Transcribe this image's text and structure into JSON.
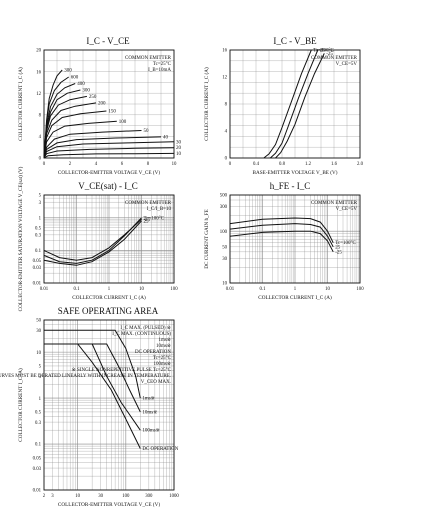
{
  "chart_data": [
    {
      "type": "line",
      "title": "I_C - V_CE",
      "xlabel": "COLLECTOR-EMITTER VOLTAGE  V_CE  (V)",
      "ylabel": "COLLECTOR CURRENT  I_C  (A)",
      "xlim": [
        0,
        10
      ],
      "ylim": [
        0,
        20
      ],
      "xticks": [
        "0",
        "2",
        "4",
        "6",
        "8",
        "10"
      ],
      "yticks": [
        "0",
        "4",
        "8",
        "12",
        "16",
        "20"
      ],
      "grid": true,
      "annotations": [
        "COMMON EMITTER",
        "Tc=25°C",
        "I_B=10mA"
      ],
      "series": [
        {
          "name": "300",
          "x": [
            0,
            0.2,
            0.4,
            0.7,
            1.0,
            1.4
          ],
          "y": [
            0,
            7,
            11,
            13.5,
            15.2,
            16.3
          ]
        },
        {
          "name": "600",
          "x": [
            0,
            0.2,
            0.4,
            0.8,
            1.3,
            1.9
          ],
          "y": [
            0,
            6.5,
            10,
            12.5,
            14,
            15
          ]
        },
        {
          "name": "400",
          "x": [
            0,
            0.2,
            0.5,
            1,
            1.6,
            2.4
          ],
          "y": [
            0,
            6,
            9.5,
            11.8,
            13,
            13.8
          ]
        },
        {
          "name": "300",
          "x": [
            0,
            0.2,
            0.5,
            1,
            1.8,
            2.8
          ],
          "y": [
            0,
            5.5,
            8.5,
            10.8,
            12,
            12.6
          ]
        },
        {
          "name": "250",
          "x": [
            0,
            0.2,
            0.5,
            1.1,
            2,
            3.3
          ],
          "y": [
            0,
            5,
            7.8,
            9.8,
            10.8,
            11.4
          ]
        },
        {
          "name": "200",
          "x": [
            0,
            0.2,
            0.6,
            1.3,
            2.4,
            4
          ],
          "y": [
            0,
            4.5,
            7,
            8.8,
            9.6,
            10.2
          ]
        },
        {
          "name": "150",
          "x": [
            0,
            0.2,
            0.6,
            1.4,
            2.8,
            4.8
          ],
          "y": [
            0,
            3.8,
            6,
            7.5,
            8.2,
            8.7
          ]
        },
        {
          "name": "100",
          "x": [
            0,
            0.2,
            0.7,
            1.6,
            3.4,
            5.6
          ],
          "y": [
            0,
            3,
            4.8,
            5.9,
            6.4,
            6.8
          ]
        },
        {
          "name": "50",
          "x": [
            0,
            0.2,
            0.8,
            2,
            4.5,
            7.5
          ],
          "y": [
            0,
            2,
            3.5,
            4.4,
            4.8,
            5.1
          ]
        },
        {
          "name": "40",
          "x": [
            0,
            0.2,
            1,
            2.5,
            5.5,
            9
          ],
          "y": [
            0,
            1.6,
            2.8,
            3.4,
            3.7,
            3.9
          ]
        },
        {
          "name": "30",
          "x": [
            0,
            0.2,
            1,
            3,
            6.5,
            10
          ],
          "y": [
            0,
            1.2,
            2.1,
            2.6,
            2.8,
            3
          ]
        },
        {
          "name": "20",
          "x": [
            0,
            0.2,
            1,
            3.5,
            7,
            10
          ],
          "y": [
            0,
            0.8,
            1.3,
            1.6,
            1.8,
            1.9
          ]
        },
        {
          "name": "10",
          "x": [
            0,
            0.3,
            1.5,
            4,
            7,
            10
          ],
          "y": [
            0,
            0.4,
            0.6,
            0.75,
            0.8,
            0.85
          ]
        }
      ]
    },
    {
      "type": "line",
      "title": "I_C - V_BE",
      "xlabel": "BASE-EMITTER VOLTAGE  V_BE  (V)",
      "ylabel": "COLLECTOR CURRENT  I_C  (A)",
      "xlim": [
        0,
        2.0
      ],
      "ylim": [
        0,
        16
      ],
      "xticks": [
        "0",
        "0.4",
        "0.8",
        "1.2",
        "1.6",
        "2.0"
      ],
      "yticks": [
        "0",
        "4",
        "8",
        "12",
        "16"
      ],
      "grid": true,
      "annotations": [
        "COMMON EMITTER",
        "V_CE=5V"
      ],
      "series": [
        {
          "name": "Tc=100°C",
          "x": [
            0.52,
            0.6,
            0.7,
            0.8,
            0.95,
            1.1,
            1.25
          ],
          "y": [
            0,
            0.6,
            2,
            4.5,
            8.5,
            12.5,
            16
          ]
        },
        {
          "name": "25",
          "x": [
            0.62,
            0.7,
            0.8,
            0.9,
            1.05,
            1.2,
            1.35
          ],
          "y": [
            0,
            0.7,
            2.2,
            4.8,
            8.8,
            12.5,
            16
          ]
        },
        {
          "name": "-25",
          "x": [
            0.7,
            0.78,
            0.88,
            1.0,
            1.15,
            1.3,
            1.45
          ],
          "y": [
            0,
            0.8,
            2.5,
            5,
            9,
            12.5,
            15.5
          ]
        }
      ]
    },
    {
      "type": "line",
      "title": "V_CE(sat) - I_C",
      "xlabel": "COLLECTOR CURRENT  I_C  (A)",
      "ylabel": "COLLECTOR-EMITTER SATURATION VOLTAGE  V_CE(sat)  (V)",
      "xscale": "log",
      "yscale": "log",
      "xlim": [
        0.01,
        100
      ],
      "ylim": [
        0.01,
        5
      ],
      "xticks": [
        "0.01",
        "0.1",
        "1",
        "10",
        "100"
      ],
      "yticks": [
        "0.01",
        "0.03",
        "0.05",
        "0.1",
        "0.3",
        "0.5",
        "1",
        "3",
        "5"
      ],
      "grid": true,
      "annotations": [
        "COMMON EMITTER",
        "I_C/I_B=10"
      ],
      "series": [
        {
          "name": "-25",
          "x": [
            0.01,
            0.03,
            0.1,
            0.3,
            1,
            3,
            10
          ],
          "y": [
            0.1,
            0.06,
            0.05,
            0.06,
            0.12,
            0.3,
            0.9
          ]
        },
        {
          "name": "Tc=100°C",
          "x": [
            0.01,
            0.03,
            0.1,
            0.3,
            1,
            3,
            10
          ],
          "y": [
            0.07,
            0.045,
            0.04,
            0.05,
            0.1,
            0.28,
            1.0
          ]
        },
        {
          "name": "25",
          "x": [
            0.01,
            0.03,
            0.1,
            0.3,
            1,
            3,
            10
          ],
          "y": [
            0.05,
            0.04,
            0.035,
            0.045,
            0.09,
            0.22,
            0.8
          ]
        }
      ]
    },
    {
      "type": "line",
      "title": "h_FE - I_C",
      "xlabel": "COLLECTOR CURRENT  I_C  (A)",
      "ylabel": "DC CURRENT GAIN  h_FE",
      "xscale": "log",
      "yscale": "log",
      "xlim": [
        0.01,
        100
      ],
      "ylim": [
        10,
        500
      ],
      "xticks": [
        "0.01",
        "0.1",
        "1",
        "10",
        "100"
      ],
      "yticks": [
        "10",
        "30",
        "50",
        "100",
        "300",
        "500"
      ],
      "grid": true,
      "annotations": [
        "COMMON EMITTER",
        "V_CE=5V"
      ],
      "series": [
        {
          "name": "Tc=100°C",
          "x": [
            0.01,
            0.1,
            1,
            3,
            6,
            10,
            15
          ],
          "y": [
            140,
            170,
            180,
            175,
            150,
            100,
            60
          ]
        },
        {
          "name": "25",
          "x": [
            0.01,
            0.1,
            1,
            3,
            6,
            10,
            15
          ],
          "y": [
            110,
            130,
            140,
            135,
            120,
            80,
            50
          ]
        },
        {
          "name": "-25",
          "x": [
            0.01,
            0.1,
            1,
            3,
            6,
            10,
            15
          ],
          "y": [
            80,
            95,
            100,
            100,
            90,
            65,
            40
          ]
        }
      ]
    },
    {
      "type": "line",
      "title": "SAFE OPERATING AREA",
      "xlabel": "COLLECTOR-EMITTER VOLTAGE  V_CE  (V)",
      "ylabel": "COLLECTOR CURRENT  I_C  (A)",
      "xscale": "log",
      "yscale": "log",
      "xlim": [
        2,
        1000
      ],
      "ylim": [
        0.01,
        50
      ],
      "xticks": [
        "2",
        "3",
        "10",
        "30",
        "100",
        "300",
        "1000"
      ],
      "yticks": [
        "0.01",
        "0.03",
        "0.05",
        "0.1",
        "0.3",
        "0.5",
        "1",
        "3",
        "5",
        "10",
        "30",
        "50"
      ],
      "grid": true,
      "annotations": [
        "I_C MAX. (PULSED) ※",
        "I_C MAX. (CONTINUOUS)",
        "1ms※",
        "10ms※",
        "DC OPERATION",
        "Tc=25°C",
        "100ms※",
        "※ SINGLE NONREPETITIVE PULSE   Tc=25°C",
        "CURVES MUST BE DERATED LINEARLY WITH INCREASE IN TEMPERATURE.",
        "V_CEO MAX."
      ],
      "series": [
        {
          "name": "1ms※",
          "x": [
            2,
            60,
            100,
            160,
            200
          ],
          "y": [
            30,
            30,
            12,
            3,
            1
          ]
        },
        {
          "name": "10ms※",
          "x": [
            2,
            40,
            70,
            120,
            200
          ],
          "y": [
            15,
            15,
            5,
            1.5,
            0.5
          ]
        },
        {
          "name": "100ms※",
          "x": [
            2,
            20,
            40,
            80,
            200
          ],
          "y": [
            15,
            15,
            3,
            0.8,
            0.2
          ]
        },
        {
          "name": "DC OPERATION",
          "x": [
            2,
            10,
            20,
            50,
            100,
            200
          ],
          "y": [
            15,
            15,
            6,
            1.5,
            0.35,
            0.08
          ]
        }
      ]
    }
  ]
}
